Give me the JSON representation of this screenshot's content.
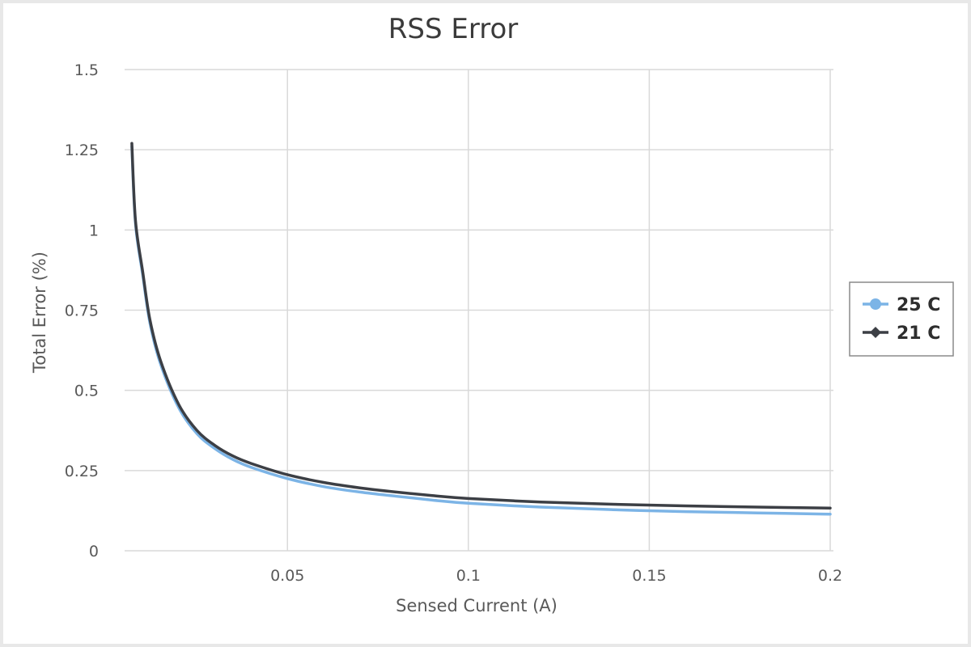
{
  "chart_data": {
    "type": "line",
    "title": "RSS Error",
    "xlabel": "Sensed Current (A)",
    "ylabel": "Total Error (%)",
    "xlim": [
      0.005,
      0.2
    ],
    "ylim": [
      0,
      1.5
    ],
    "x_ticks": [
      0.05,
      0.1,
      0.15,
      0.2
    ],
    "x_tick_labels": [
      "0.05",
      "0.1",
      "0.15",
      "0.2"
    ],
    "y_ticks": [
      0,
      0.25,
      0.5,
      0.75,
      1,
      1.25,
      1.5
    ],
    "y_tick_labels": [
      "0",
      "0.25",
      "0.5",
      "0.75",
      "1",
      "1.25",
      "1.5"
    ],
    "grid": true,
    "legend_position": "right",
    "x": [
      0.007,
      0.008,
      0.01,
      0.012,
      0.015,
      0.02,
      0.025,
      0.03,
      0.035,
      0.04,
      0.05,
      0.06,
      0.07,
      0.08,
      0.09,
      0.1,
      0.12,
      0.14,
      0.16,
      0.18,
      0.2
    ],
    "series": [
      {
        "name": "25 C",
        "color": "#7cb4e6",
        "marker": "circle",
        "values": [
          1.26,
          1.02,
          0.86,
          0.71,
          0.58,
          0.445,
          0.365,
          0.318,
          0.284,
          0.26,
          0.225,
          0.2,
          0.183,
          0.17,
          0.158,
          0.148,
          0.136,
          0.128,
          0.122,
          0.118,
          0.114
        ]
      },
      {
        "name": "21 C",
        "color": "#3c3f45",
        "marker": "diamond",
        "values": [
          1.27,
          1.03,
          0.87,
          0.72,
          0.59,
          0.455,
          0.375,
          0.328,
          0.295,
          0.272,
          0.237,
          0.213,
          0.196,
          0.183,
          0.172,
          0.163,
          0.152,
          0.145,
          0.14,
          0.136,
          0.133
        ]
      }
    ]
  }
}
